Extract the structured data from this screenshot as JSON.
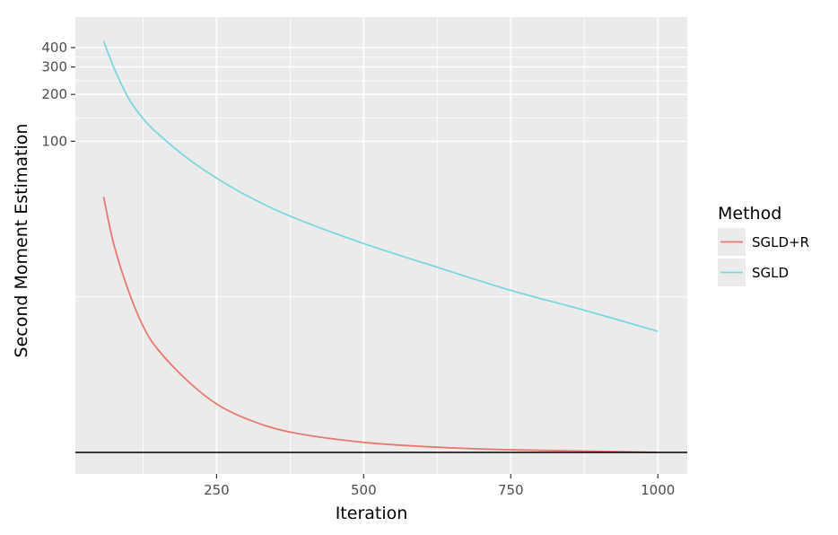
{
  "chart_data": {
    "type": "line",
    "title": "",
    "xlabel": "Iteration",
    "ylabel": "Second Moment Estimation",
    "y_scale": "log",
    "xlim": [
      10,
      1050
    ],
    "x_ticks": [
      250,
      500,
      750,
      1000
    ],
    "x_tick_labels": [
      "250",
      "500",
      "750",
      "1000"
    ],
    "y_ticks": [
      100,
      200,
      300,
      400
    ],
    "y_tick_labels": [
      "100",
      "200",
      "300",
      "400"
    ],
    "grid": true,
    "reference_line": 1,
    "legend": {
      "title": "Method",
      "position": "right"
    },
    "series": [
      {
        "name": "SGLD+R",
        "color": "#E7796E",
        "x": [
          58,
          75,
          100,
          125,
          150,
          200,
          250,
          300,
          375,
          500,
          625,
          750,
          875,
          1000
        ],
        "y": [
          44,
          22,
          11,
          6.5,
          4.6,
          2.9,
          2.05,
          1.65,
          1.35,
          1.16,
          1.08,
          1.04,
          1.02,
          1.0
        ]
      },
      {
        "name": "SGLD",
        "color": "#79D7E1",
        "x": [
          58,
          75,
          100,
          125,
          150,
          200,
          250,
          300,
          375,
          500,
          625,
          750,
          875,
          1000
        ],
        "y": [
          440,
          300,
          190,
          140,
          112,
          78,
          58,
          45,
          33,
          22,
          15.5,
          11,
          8.2,
          6.0
        ]
      }
    ]
  }
}
